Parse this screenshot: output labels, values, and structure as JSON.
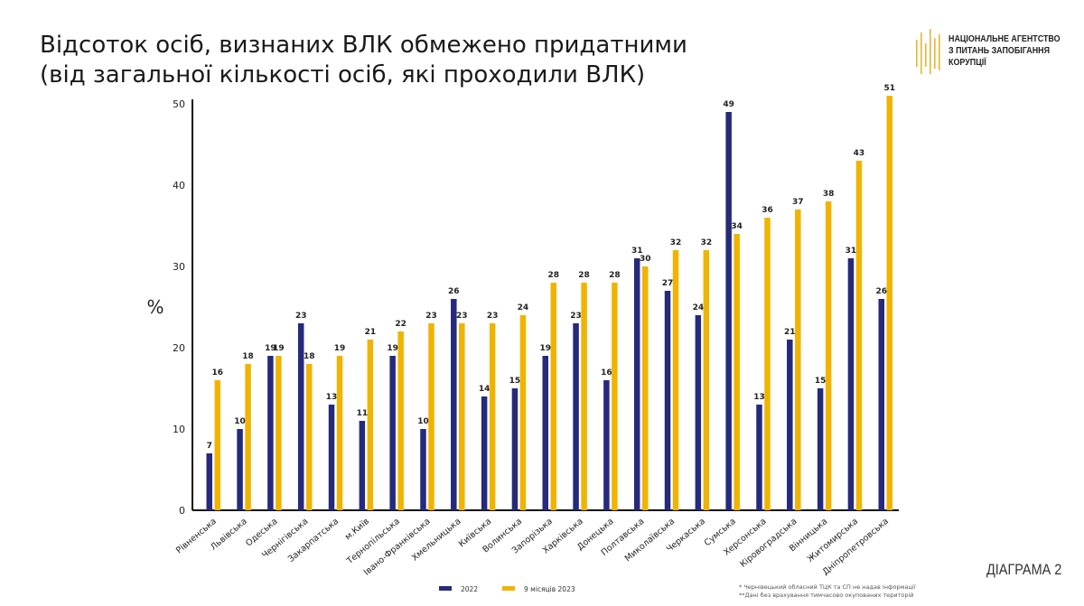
{
  "title": "Відсоток осіб, визнаних ВЛК обмежено придатними\n(від загальної кількості осіб, які проходили ВЛК)",
  "logo": {
    "text": "НАЦІОНАЛЬНЕ АГЕНТСТВО\nЗ ПИТАНЬ ЗАПОБІГАННЯ\nКОРУПЦІЇ",
    "color": "#e8b53a"
  },
  "diagram_label": "ДІАГРАМА 2",
  "footnotes": [
    "* Чернівецький обласний ТЦК та СП не надав інформації",
    "**Дані без врахування тимчасово окупованих територій"
  ],
  "chart_data": {
    "type": "bar",
    "ylabel": "%",
    "ylim": [
      0,
      50
    ],
    "yticks": [
      0,
      10,
      20,
      30,
      40,
      50
    ],
    "grid": false,
    "legend_placement": "bottom",
    "categories": [
      "Рівненська",
      "Львівська",
      "Одеська",
      "Чернігівська",
      "Закарпатська",
      "м.Київ",
      "Тернопільська",
      "Івано-Франківська",
      "Хмельницька",
      "Київська",
      "Волинська",
      "Запорізька",
      "Харківська",
      "Донецька",
      "Полтавська",
      "Миколаївська",
      "Черкаська",
      "Сумська",
      "Херсонська",
      "Кіровоградська",
      "Вінницька",
      "Житомирська",
      "Дніпропетровська"
    ],
    "series": [
      {
        "name": "2022",
        "color": "#262a7a",
        "values": [
          7,
          10,
          19,
          23,
          13,
          11,
          19,
          10,
          26,
          14,
          15,
          19,
          23,
          16,
          31,
          27,
          24,
          49,
          13,
          21,
          15,
          31,
          26
        ]
      },
      {
        "name": "9 місяців 2023",
        "color": "#f0b400",
        "values": [
          16,
          18,
          19,
          18,
          19,
          21,
          22,
          23,
          23,
          23,
          24,
          28,
          28,
          28,
          30,
          32,
          32,
          34,
          36,
          37,
          38,
          43,
          51
        ]
      }
    ]
  }
}
